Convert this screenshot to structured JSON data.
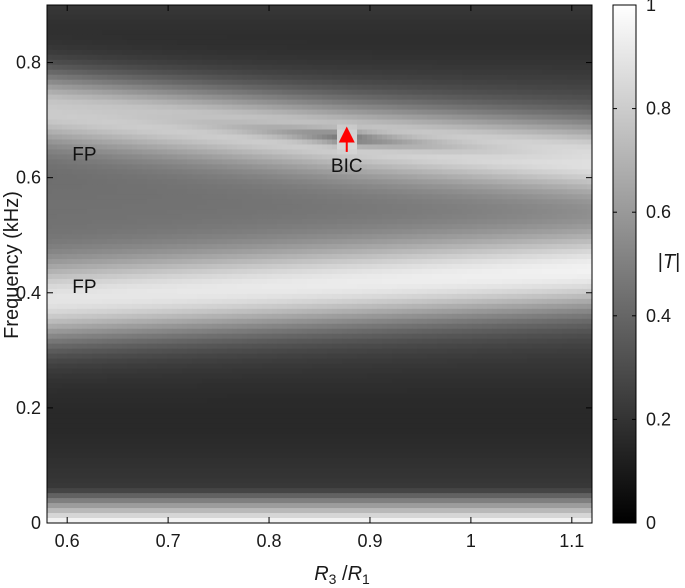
{
  "chart_data": {
    "type": "heatmap",
    "title": "",
    "xlabel": {
      "main": "R",
      "sub1": "3",
      "slash": " /",
      "main2": "R",
      "sub2": "1"
    },
    "ylabel": "Frequency (kHz)",
    "xlim": [
      0.58,
      1.12
    ],
    "ylim": [
      0,
      0.9
    ],
    "xticks": [
      0.6,
      0.7,
      0.8,
      0.9,
      1.0,
      1.1
    ],
    "xtick_labels": [
      "0.6",
      "0.7",
      "0.8",
      "0.9",
      "1",
      "1.1"
    ],
    "yticks": [
      0,
      0.2,
      0.4,
      0.6,
      0.8
    ],
    "ytick_labels": [
      "0",
      "0.2",
      "0.4",
      "0.6",
      "0.8"
    ],
    "colormap": "gray",
    "colorbar": {
      "label_prefix": "|",
      "label_var": "T",
      "label_suffix": "|",
      "range": [
        0,
        1
      ],
      "ticks": [
        0,
        0.2,
        0.4,
        0.6,
        0.8,
        1
      ],
      "tick_labels": [
        "0",
        "0.2",
        "0.4",
        "0.6",
        "0.8",
        "1"
      ]
    },
    "features": {
      "fp_upper_band": {
        "x_start": 0.58,
        "f_start": 0.72,
        "x_end": 0.88,
        "f_end": 0.668
      },
      "upper_band_right": {
        "x_start": 0.88,
        "f_start": 0.668,
        "x_end": 1.12,
        "f_end": 0.635
      },
      "fp_lower_band": {
        "x_start": 0.58,
        "f_start": 0.385,
        "x_end": 1.12,
        "f_end": 0.435
      },
      "bic_point": {
        "x": 0.877,
        "f": 0.668
      }
    },
    "annotations": [
      {
        "text": "FP",
        "x": 0.605,
        "y": 0.63,
        "color": "#111111"
      },
      {
        "text": "FP",
        "x": 0.605,
        "y": 0.4,
        "color": "#111111"
      },
      {
        "text": "BIC",
        "x": 0.877,
        "y": 0.61,
        "color": "#111111"
      }
    ],
    "arrow": {
      "x": 0.877,
      "y_from": 0.61,
      "y_to": 0.668,
      "color": "#ff0000"
    }
  }
}
